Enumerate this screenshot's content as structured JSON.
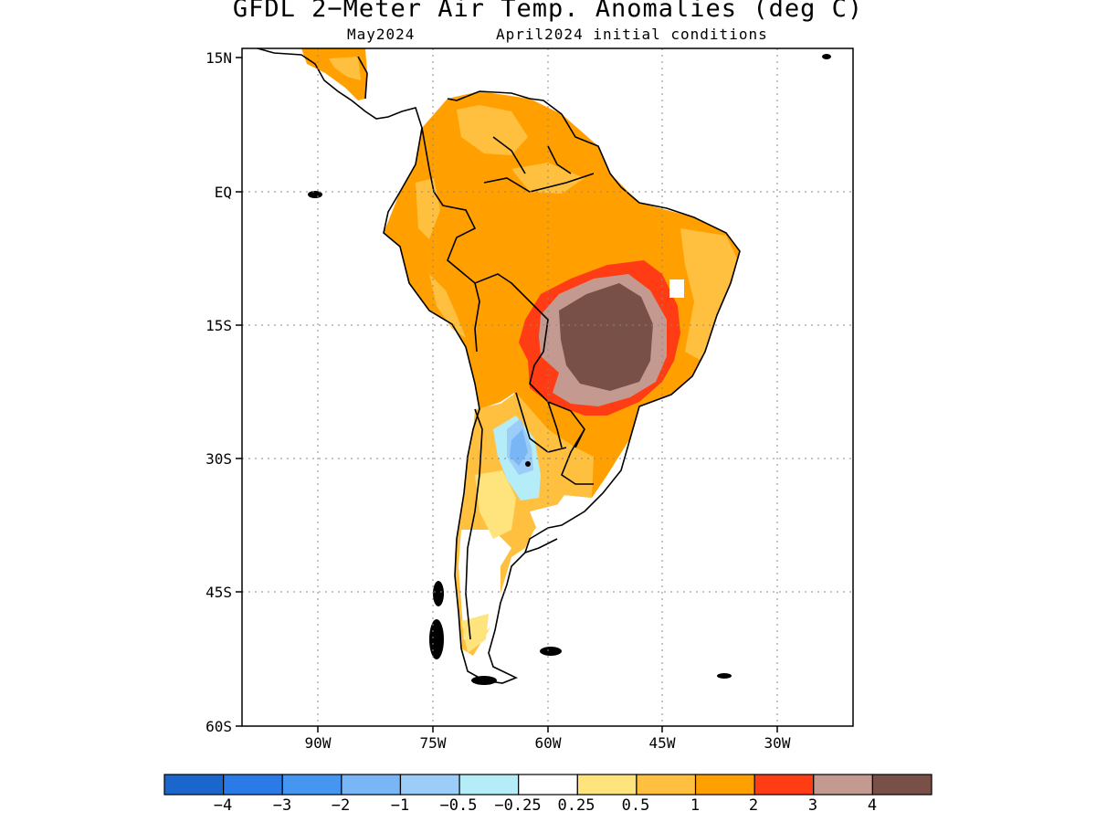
{
  "title": "GFDL 2−Meter Air Temp. Anomalies (deg C)",
  "subtitle_left": "May2024",
  "subtitle_right": "April2024 initial conditions",
  "map": {
    "lat_ticks": [
      "15N",
      "EQ",
      "15S",
      "30S",
      "45S",
      "60S"
    ],
    "lon_ticks": [
      "90W",
      "75W",
      "60W",
      "45W",
      "30W"
    ],
    "lon_range_deg": [
      -99,
      -19
    ],
    "lat_range_deg": [
      -60,
      15
    ],
    "grid": "dotted"
  },
  "colorbar": {
    "colors": [
      "#1a66cc",
      "#2a7ae8",
      "#4496f0",
      "#78b6f5",
      "#9ccdf8",
      "#b4ecf8",
      "#ffffff",
      "#ffe37c",
      "#ffc040",
      "#ffa000",
      "#ff3c14",
      "#c49a90",
      "#785048"
    ],
    "labels": [
      "−4",
      "−3",
      "−2",
      "−1",
      "−0.5",
      "−0.25",
      "0.25",
      "0.5",
      "1",
      "2",
      "3",
      "4"
    ]
  },
  "anomaly_colors": {
    "orange": "#ffa000",
    "light_orange": "#ffc040",
    "yellow": "#ffe37c",
    "red": "#ff3c14",
    "pink_brown": "#c49a90",
    "dark_brown": "#785048",
    "light_blue": "#9ccdf8",
    "cyan": "#b4ecf8",
    "blue": "#78b6f5"
  }
}
